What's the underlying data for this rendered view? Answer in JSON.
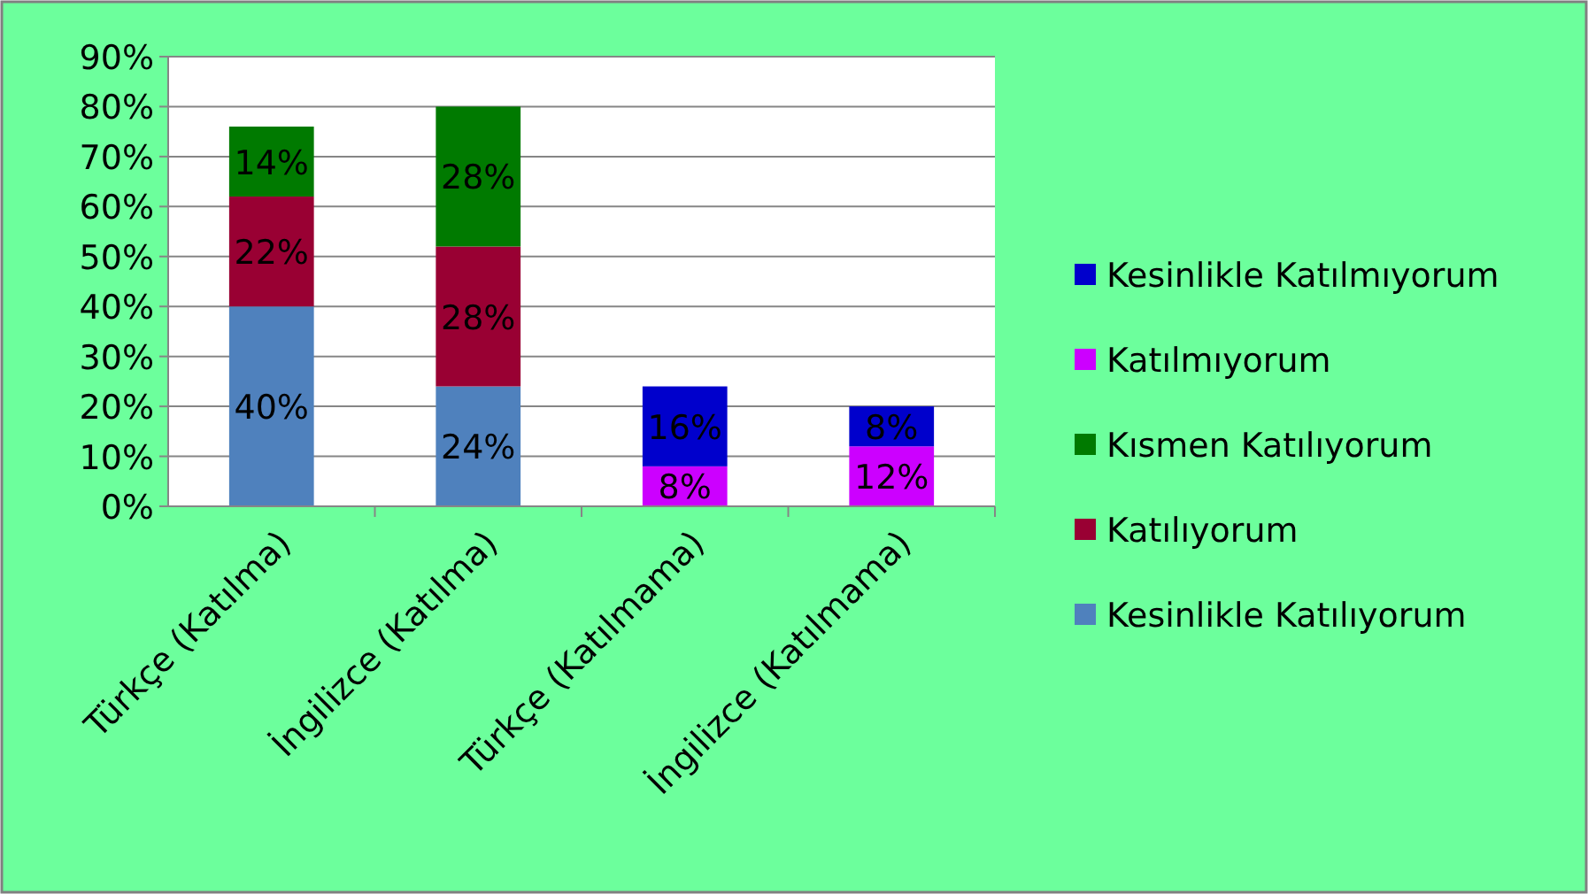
{
  "chart_data": {
    "type": "bar",
    "stacked": true,
    "categories": [
      "Türkçe (Katılma)",
      "İngilizce (Katılma)",
      "Türkçe (Katılmama)",
      "İngilizce (Katılmama)"
    ],
    "series": [
      {
        "name": "Kesinlikle Katılıyorum",
        "color": "#4f81bd",
        "values": [
          40,
          24,
          null,
          null
        ],
        "value_labels": [
          "40%",
          "24%",
          null,
          null
        ]
      },
      {
        "name": "Katılıyorum",
        "color": "#990033",
        "values": [
          22,
          28,
          null,
          null
        ],
        "value_labels": [
          "22%",
          "28%",
          null,
          null
        ]
      },
      {
        "name": "Kısmen Katılıyorum",
        "color": "#007a00",
        "values": [
          14,
          28,
          null,
          null
        ],
        "value_labels": [
          "14%",
          "28%",
          null,
          null
        ]
      },
      {
        "name": "Katılmıyorum",
        "color": "#cc00ff",
        "values": [
          null,
          null,
          8,
          12
        ],
        "value_labels": [
          null,
          null,
          "8%",
          "12%"
        ]
      },
      {
        "name": "Kesinlikle Katılmıyorum",
        "color": "#0000cc",
        "values": [
          null,
          null,
          16,
          8
        ],
        "value_labels": [
          null,
          null,
          "16%",
          "8%"
        ]
      }
    ],
    "ylim": [
      0,
      90
    ],
    "yticks": [
      {
        "value": 0,
        "label": "0%"
      },
      {
        "value": 10,
        "label": "10%"
      },
      {
        "value": 20,
        "label": "20%"
      },
      {
        "value": 30,
        "label": "30%"
      },
      {
        "value": 40,
        "label": "40%"
      },
      {
        "value": 50,
        "label": "50%"
      },
      {
        "value": 60,
        "label": "60%"
      },
      {
        "value": 70,
        "label": "70%"
      },
      {
        "value": 80,
        "label": "80%"
      },
      {
        "value": 90,
        "label": "90%"
      }
    ],
    "grid": "y",
    "legend": "right"
  }
}
